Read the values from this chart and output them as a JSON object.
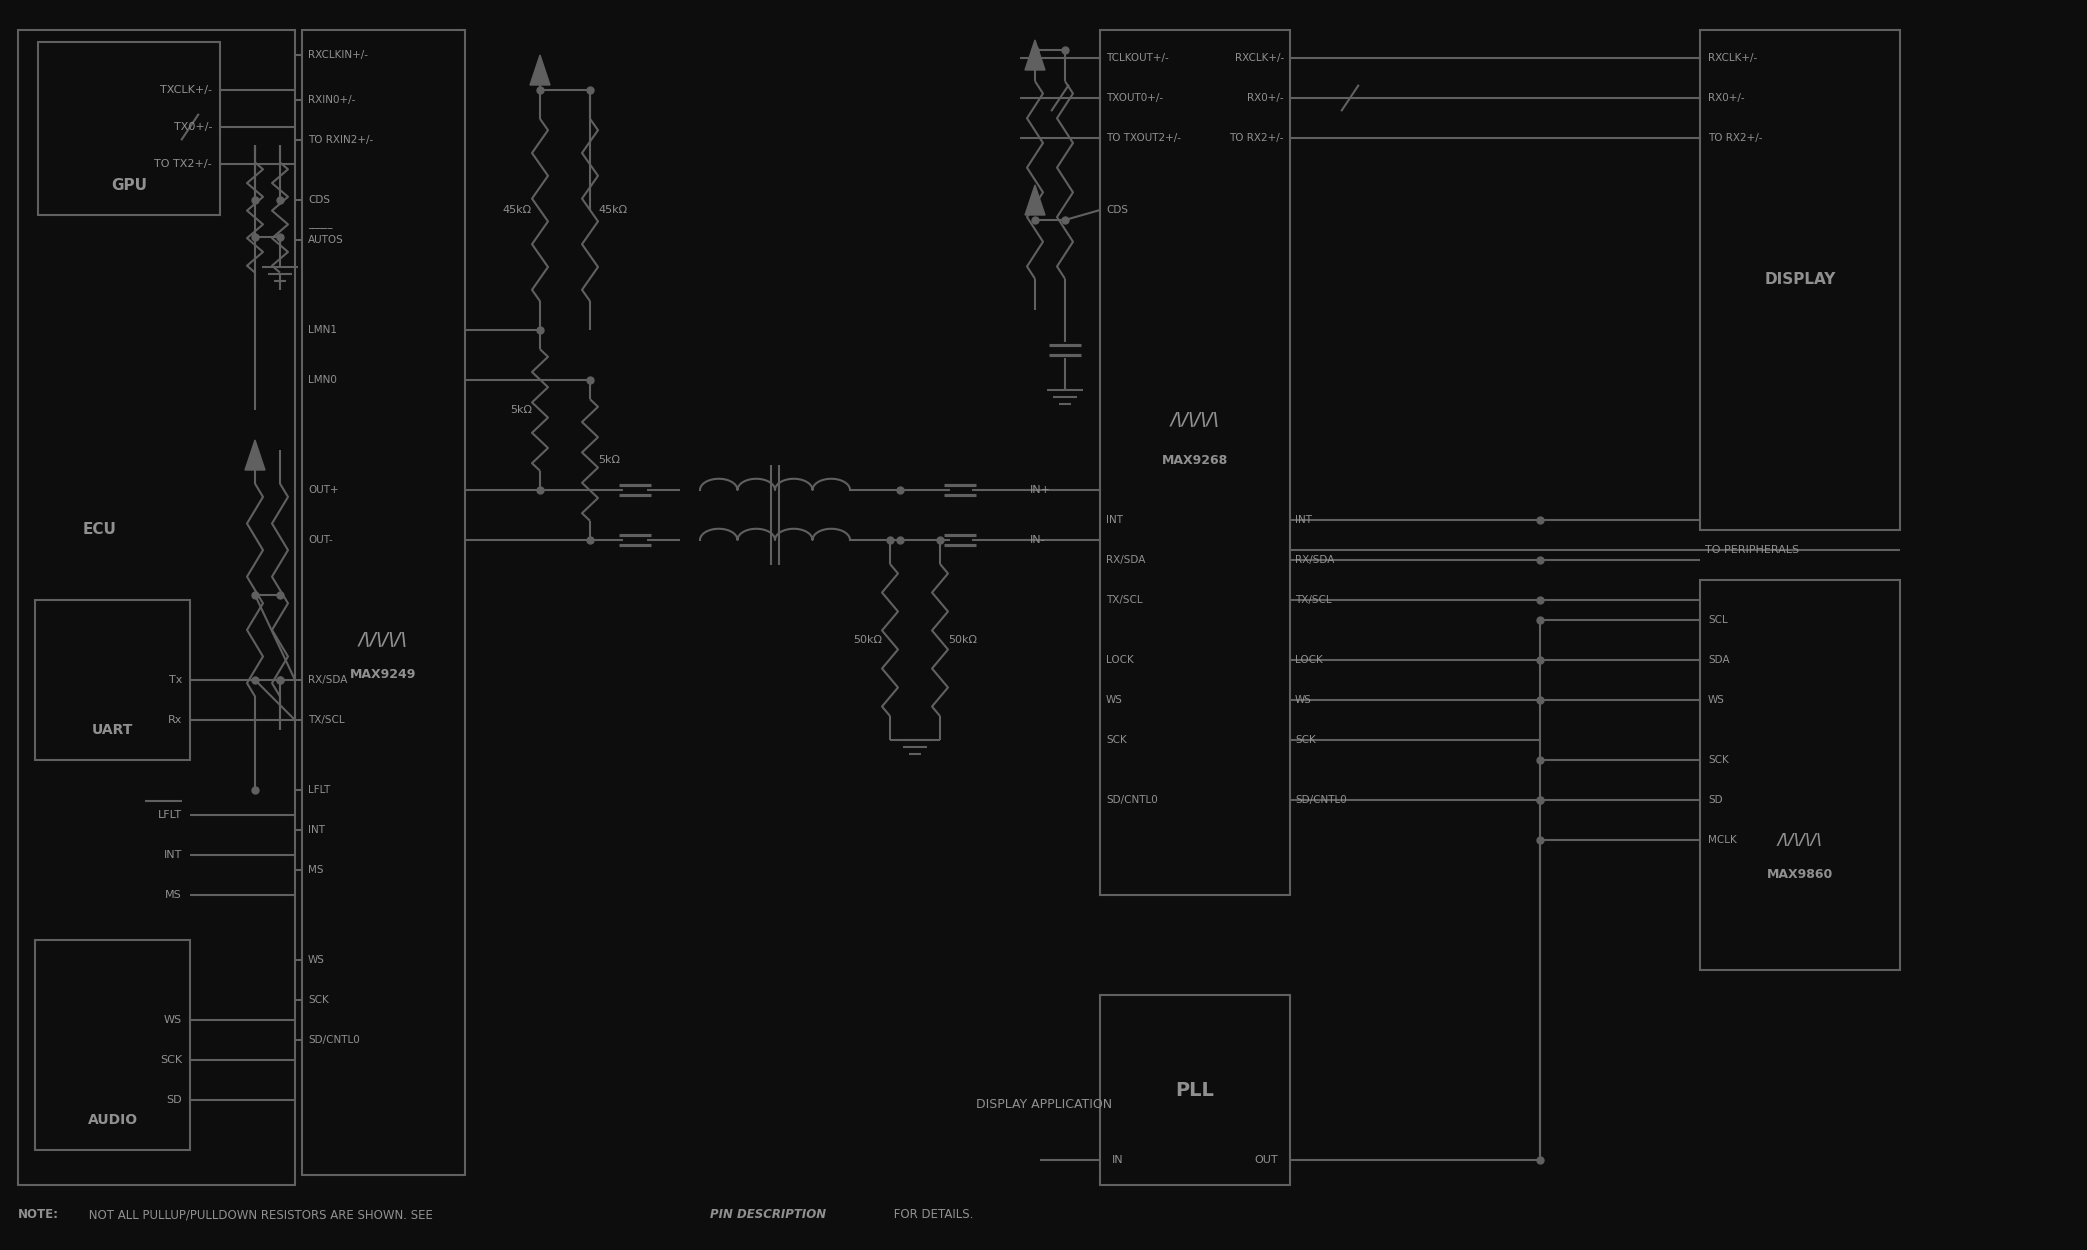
{
  "bg_color": "#0d0d0d",
  "line_color": "#606060",
  "text_color": "#909090",
  "display_app_label": "DISPLAY APPLICATION",
  "note_bold": "NOTE:",
  "note_main": " NOT ALL PULLUP/PULLDOWN RESISTORS ARE SHOWN. SEE ",
  "note_italic": "PIN DESCRIPTION",
  "note_end": " FOR DETAILS."
}
